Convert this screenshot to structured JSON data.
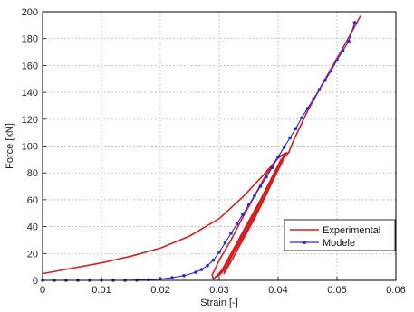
{
  "chart_data": {
    "type": "line",
    "xlabel": "Strain [-]",
    "ylabel": "Force [kN]",
    "xlim": [
      0,
      0.06
    ],
    "ylim": [
      0,
      200
    ],
    "xticks": [
      0,
      0.01,
      0.02,
      0.03,
      0.04,
      0.05,
      0.06
    ],
    "xtick_labels": [
      "0",
      "0.01",
      "0.02",
      "0.03",
      "0.04",
      "0.05",
      "0.06"
    ],
    "yticks": [
      0,
      20,
      40,
      60,
      80,
      100,
      120,
      140,
      160,
      180,
      200
    ],
    "ytick_labels": [
      "0",
      "20",
      "40",
      "60",
      "80",
      "100",
      "120",
      "140",
      "160",
      "180",
      "200"
    ],
    "grid": true,
    "legend_position": "lower-right",
    "series": [
      {
        "name": "Experimental",
        "color": "#d42020",
        "marker": "none",
        "x": [
          0,
          0.005,
          0.01,
          0.015,
          0.02,
          0.025,
          0.03,
          0.034,
          0.037,
          0.039,
          0.04,
          0.041,
          0.0415,
          0.041,
          0.04,
          0.038,
          0.036,
          0.034,
          0.032,
          0.0305,
          0.0295,
          0.029,
          0.0288,
          0.03,
          0.032,
          0.034,
          0.036,
          0.038,
          0.04,
          0.0415,
          0.04,
          0.038,
          0.036,
          0.034,
          0.032,
          0.0305,
          0.0298,
          0.0305,
          0.033,
          0.036,
          0.039,
          0.0415,
          0.04,
          0.038,
          0.036,
          0.034,
          0.032,
          0.0308,
          0.031,
          0.034,
          0.037,
          0.0405,
          0.0418,
          0.0425,
          0.045,
          0.048,
          0.051,
          0.0535,
          0.054
        ],
        "y": [
          5,
          9,
          13,
          18,
          24,
          33,
          46,
          62,
          76,
          86,
          91,
          94,
          95,
          93,
          85,
          68,
          50,
          34,
          18,
          8,
          3,
          1,
          4,
          15,
          30,
          47,
          63,
          79,
          92,
          95,
          84,
          66,
          48,
          32,
          17,
          6,
          3,
          8,
          28,
          52,
          76,
          95,
          82,
          64,
          46,
          30,
          14,
          5,
          8,
          34,
          60,
          90,
          95,
          103,
          126,
          150,
          173,
          193,
          197
        ]
      },
      {
        "name": "Modele",
        "color": "#2b2bd6",
        "marker": "dot",
        "x": [
          0,
          0.002,
          0.004,
          0.006,
          0.008,
          0.01,
          0.012,
          0.014,
          0.016,
          0.018,
          0.02,
          0.022,
          0.024,
          0.026,
          0.027,
          0.028,
          0.029,
          0.03,
          0.031,
          0.032,
          0.033,
          0.034,
          0.035,
          0.036,
          0.037,
          0.038,
          0.039,
          0.04,
          0.041,
          0.042,
          0.043,
          0.044,
          0.045,
          0.046,
          0.047,
          0.048,
          0.049,
          0.05,
          0.051,
          0.052,
          0.053
        ],
        "y": [
          0,
          0,
          0,
          0,
          0,
          0,
          0,
          0,
          0.2,
          0.5,
          1,
          2,
          3.5,
          6,
          8,
          11,
          15,
          21,
          28,
          35,
          42,
          49,
          56,
          63,
          70,
          77,
          84,
          92,
          99,
          106,
          113,
          121,
          128,
          135,
          142,
          149,
          156,
          164,
          171,
          178,
          192
        ]
      }
    ]
  }
}
